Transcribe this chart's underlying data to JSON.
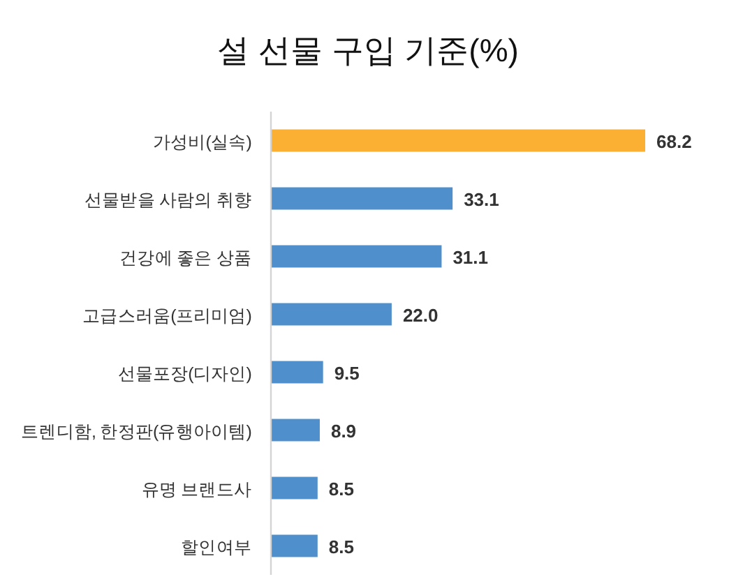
{
  "chart_data": {
    "type": "bar",
    "orientation": "horizontal",
    "title": "설 선물 구입 기준(%)",
    "categories": [
      "가성비(실속)",
      "선물받을 사람의 취향",
      "건강에 좋은 상품",
      "고급스러움(프리미엄)",
      "선물포장(디자인)",
      "트렌디함, 한정판(유행아이템)",
      "유명 브랜드사",
      "할인여부"
    ],
    "values": [
      68.2,
      33.1,
      31.1,
      22.0,
      9.5,
      8.9,
      8.5,
      8.5
    ],
    "colors": [
      "#fbb034",
      "#4f8fcc",
      "#4f8fcc",
      "#4f8fcc",
      "#4f8fcc",
      "#4f8fcc",
      "#4f8fcc",
      "#4f8fcc"
    ],
    "value_labels": [
      "68.2",
      "33.1",
      "31.1",
      "22.0",
      "9.5",
      "8.9",
      "8.5",
      "8.5"
    ]
  }
}
